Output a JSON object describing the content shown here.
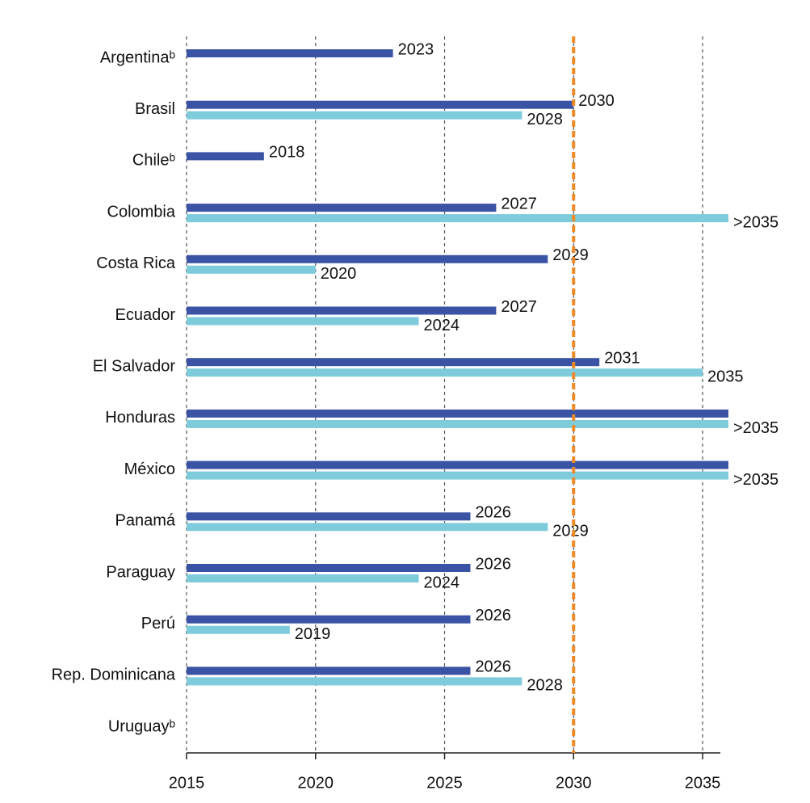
{
  "chart_data": {
    "type": "bar",
    "orientation": "horizontal",
    "categories": [
      "Argentinaᵇ",
      "Brasil",
      "Chileᵇ",
      "Colombia",
      "Costa Rica",
      "Ecuador",
      "El Salvador",
      "Honduras",
      "México",
      "Panamá",
      "Paraguay",
      "Perú",
      "Rep. Dominicana",
      "Uruguayᵇ"
    ],
    "series": [
      {
        "color": "#3a53a4",
        "values": [
          2023,
          2030,
          2018,
          2027,
          2029,
          2027,
          2031,
          2036,
          2036,
          2026,
          2026,
          2026,
          2026,
          null
        ],
        "value_labels": [
          "2023",
          "2030",
          "2018",
          "2027",
          "2029",
          "2027",
          "2031",
          null,
          null,
          "2026",
          "2026",
          "2026",
          "2026",
          null
        ]
      },
      {
        "color": "#7ecbdb",
        "values": [
          null,
          2028,
          null,
          2036,
          2020,
          2024,
          2035,
          2036,
          2036,
          2029,
          2024,
          2019,
          2028,
          null
        ],
        "value_labels": [
          null,
          "2028",
          null,
          ">2035",
          "2020",
          "2024",
          "2035",
          ">2035",
          ">2035",
          "2029",
          "2024",
          "2019",
          "2028",
          null
        ]
      }
    ],
    "xlim": [
      2015,
      2036
    ],
    "xticks": [
      2015,
      2020,
      2025,
      2030,
      2035
    ],
    "grid": true,
    "reference_line": {
      "value": 2030,
      "color": "#f08a24"
    }
  }
}
